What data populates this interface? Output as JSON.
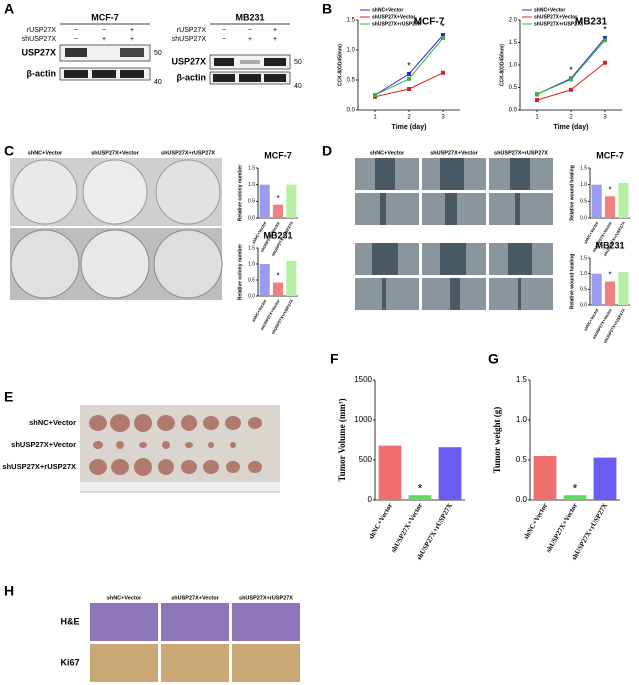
{
  "panel_letters": [
    "A",
    "B",
    "C",
    "D",
    "E",
    "F",
    "G",
    "H"
  ],
  "blot": [
    {
      "cell_line": "MCF-7",
      "row_labels": [
        "rUSP27X",
        "shUSP27X"
      ],
      "signs": [
        [
          "−",
          "−",
          "+"
        ],
        [
          "−",
          "+",
          "+"
        ]
      ],
      "bands": [
        "USP27X",
        "β-actin"
      ],
      "markers": [
        "50",
        "40"
      ]
    },
    {
      "cell_line": "MB231",
      "row_labels": [
        "rUSP27X",
        "shUSP27X"
      ],
      "signs": [
        [
          "−",
          "−",
          "+"
        ],
        [
          "−",
          "+",
          "+"
        ]
      ],
      "bands": [
        "USP27X",
        "β-actin"
      ],
      "markers": [
        "50",
        "40"
      ]
    }
  ],
  "colony_headers": [
    "shNC+Vector",
    "shUSP27X+Vector",
    "shUSP27X+rUSP27X"
  ],
  "wound_headers": [
    "shNC+Vector",
    "shUSP27X+Vector",
    "shUSP27X+rUSP27X"
  ],
  "tumor_rows": [
    "shNC+Vector",
    "shUSP27X+Vector",
    "shUSP27X+rUSP27X"
  ],
  "histology": {
    "headers": [
      "shNC+Vector",
      "shUSP27X+Vector",
      "shUSP27X+rUSP27X"
    ],
    "rows": [
      "H&E",
      "Ki67"
    ]
  },
  "chart_data": [
    {
      "type": "line",
      "title": "MCF-7",
      "x_label": "Time (day)",
      "y_label": "CCK-8(OD450nm)",
      "x": [
        1,
        2,
        3
      ],
      "xlim": [
        0.5,
        3.5
      ],
      "xticks": [
        1,
        2,
        3
      ],
      "ylim": [
        0,
        1.5
      ],
      "yticks": [
        {
          "value": 0,
          "label": "0.0"
        },
        {
          "value": 0.5,
          "label": "0.5"
        },
        {
          "value": 1,
          "label": "1.0"
        },
        {
          "value": 1.5,
          "label": "1.5"
        }
      ],
      "annotation": "*",
      "series": [
        {
          "name": "shNC+Vector",
          "color": "#2b2bd6",
          "values": [
            0.25,
            0.6,
            1.25
          ]
        },
        {
          "name": "shUSP27X+Vector",
          "color": "#e02020",
          "values": [
            0.22,
            0.35,
            0.62
          ]
        },
        {
          "name": "shUSP27X+rUSP27X",
          "color": "#3cb043",
          "values": [
            0.25,
            0.52,
            1.2
          ]
        }
      ]
    },
    {
      "type": "line",
      "title": "MB231",
      "x_label": "Time (day)",
      "y_label": "CCK-8(OD450nm)",
      "x": [
        1,
        2,
        3
      ],
      "xlim": [
        0.5,
        3.5
      ],
      "xticks": [
        1,
        2,
        3
      ],
      "ylim": [
        0,
        2
      ],
      "yticks": [
        {
          "value": 0,
          "label": "0.0"
        },
        {
          "value": 0.5,
          "label": "0.5"
        },
        {
          "value": 1,
          "label": "1.0"
        },
        {
          "value": 1.5,
          "label": "1.5"
        },
        {
          "value": 2,
          "label": "2.0"
        }
      ],
      "annotation": "*",
      "series": [
        {
          "name": "shNC+Vector",
          "color": "#2b2bd6",
          "values": [
            0.35,
            0.7,
            1.6
          ]
        },
        {
          "name": "shUSP27X+Vector",
          "color": "#e02020",
          "values": [
            0.22,
            0.45,
            1.05
          ]
        },
        {
          "name": "shUSP27X+rUSP27X",
          "color": "#3cb043",
          "values": [
            0.35,
            0.68,
            1.55
          ]
        }
      ]
    },
    {
      "type": "bar",
      "title": "MCF-7",
      "y_label": "Relative colony number",
      "categories": [
        "shNC+Vector",
        "shUSP27X+Vector",
        "shUSP27X+rUSP27X"
      ],
      "values": [
        1.0,
        0.4,
        1.0
      ],
      "colors": [
        "#9b9bef",
        "#f08080",
        "#b5f0a5"
      ],
      "ylim": [
        0,
        1.5
      ],
      "yticks": [
        {
          "value": 0,
          "label": "0.0"
        },
        {
          "value": 0.5,
          "label": "0.5"
        },
        {
          "value": 1,
          "label": "1.0"
        },
        {
          "value": 1.5,
          "label": "1.5"
        }
      ],
      "annotation": "*"
    },
    {
      "type": "bar",
      "title": "MB231",
      "y_label": "Relative colony number",
      "categories": [
        "shNC+Vector",
        "shUSP27X+Vector",
        "shUSP27X+rUSP27X"
      ],
      "values": [
        1.0,
        0.42,
        1.1
      ],
      "colors": [
        "#9b9bef",
        "#f08080",
        "#b5f0a5"
      ],
      "ylim": [
        0,
        1.5
      ],
      "yticks": [
        {
          "value": 0,
          "label": "0.0"
        },
        {
          "value": 0.5,
          "label": "0.5"
        },
        {
          "value": 1,
          "label": "1.0"
        },
        {
          "value": 1.5,
          "label": "1.5"
        }
      ],
      "annotation": "*"
    },
    {
      "type": "bar",
      "title": "MCF-7",
      "y_label": "Relative wound healing",
      "categories": [
        "shNC+Vector",
        "shUSP27X+Vector",
        "shUSP27X+rUSP27X"
      ],
      "values": [
        1.0,
        0.65,
        1.05
      ],
      "colors": [
        "#9b9bef",
        "#f08080",
        "#b5f0a5"
      ],
      "ylim": [
        0,
        1.5
      ],
      "yticks": [
        {
          "value": 0,
          "label": "0.0"
        },
        {
          "value": 0.5,
          "label": "0.5"
        },
        {
          "value": 1,
          "label": "1.0"
        },
        {
          "value": 1.5,
          "label": "1.5"
        }
      ],
      "annotation": "*"
    },
    {
      "type": "bar",
      "title": "MB231",
      "y_label": "Relative wound healing",
      "categories": [
        "shNC+Vector",
        "shUSP27X+Vector",
        "shUSP27X+rUSP27X"
      ],
      "values": [
        1.0,
        0.75,
        1.05
      ],
      "colors": [
        "#9b9bef",
        "#f08080",
        "#b5f0a5"
      ],
      "ylim": [
        0,
        1.5
      ],
      "yticks": [
        {
          "value": 0,
          "label": "0.0"
        },
        {
          "value": 0.5,
          "label": "0.5"
        },
        {
          "value": 1,
          "label": "1.0"
        },
        {
          "value": 1.5,
          "label": "1.5"
        }
      ],
      "annotation": "*"
    },
    {
      "type": "bar",
      "y_label": "Tumor Volume (mm³)",
      "categories": [
        "shNC+Vector",
        "shUSP27X+Vector",
        "shUSP27X+rUSP27X"
      ],
      "values": [
        680,
        60,
        660
      ],
      "colors": [
        "#f07070",
        "#5fdc5f",
        "#6a5cf0"
      ],
      "ylim": [
        0,
        1500
      ],
      "yticks": [
        0,
        500,
        1000,
        1500
      ],
      "annotation": "*"
    },
    {
      "type": "bar",
      "y_label": "Tumor weight (g)",
      "categories": [
        "shNC+Vector",
        "shUSP27X+Vector",
        "shUSP27X+rUSP27X"
      ],
      "values": [
        0.55,
        0.06,
        0.53
      ],
      "colors": [
        "#f07070",
        "#5fdc5f",
        "#6a5cf0"
      ],
      "ylim": [
        0,
        1.5
      ],
      "yticks": [
        {
          "value": 0,
          "label": "0.0"
        },
        {
          "value": 0.5,
          "label": "0.5"
        },
        {
          "value": 1,
          "label": "1.0"
        },
        {
          "value": 1.5,
          "label": "1.5"
        }
      ],
      "annotation": "*"
    }
  ]
}
